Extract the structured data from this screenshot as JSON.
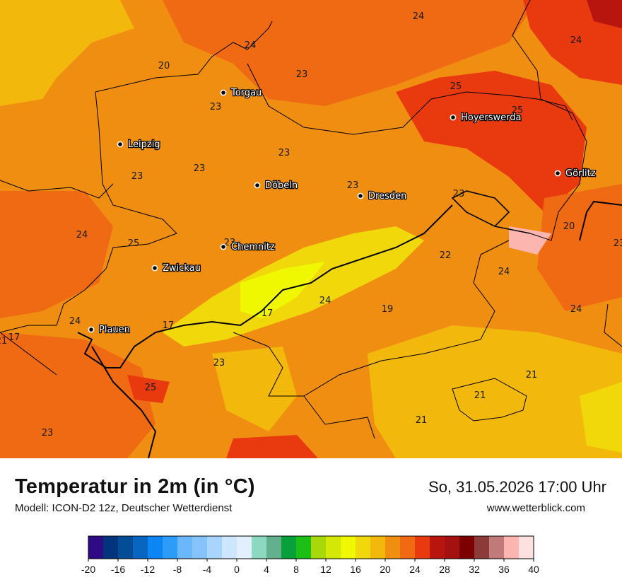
{
  "map": {
    "cities": [
      {
        "name": "Torgau"
      },
      {
        "name": "Hoyerswerda"
      },
      {
        "name": "Leipzig"
      },
      {
        "name": "Görlitz"
      },
      {
        "name": "Döbeln"
      },
      {
        "name": "Dresden"
      },
      {
        "name": "Chemnitz"
      },
      {
        "name": "Zwickau"
      },
      {
        "name": "Plauen"
      }
    ],
    "temperatures": [
      "24",
      "24",
      "24",
      "20",
      "23",
      "25",
      "25",
      "23",
      "23",
      "23",
      "23",
      "23",
      "23",
      "20",
      "24",
      "25",
      "23",
      "22",
      "24",
      "24",
      "17",
      "17",
      "24",
      "19",
      "24",
      "23",
      "21",
      "23",
      "21",
      "25",
      "21",
      "21",
      "23",
      "17"
    ]
  },
  "footer": {
    "title": "Temperatur in 2m (in °C)",
    "model": "Modell: ICON-D2 12z, Deutscher Wetterdienst",
    "datetime": "So, 31.05.2026 17:00 Uhr",
    "website": "www.wetterblick.com"
  },
  "legend": {
    "tick_labels": [
      "-20",
      "-16",
      "-12",
      "-8",
      "-4",
      "0",
      "4",
      "8",
      "12",
      "16",
      "20",
      "24",
      "28",
      "32",
      "36",
      "40"
    ],
    "colors": [
      "#2e0a84",
      "#02337d",
      "#034c96",
      "#0866c0",
      "#0b86f4",
      "#2c9cf9",
      "#6ab8fb",
      "#86c3fb",
      "#a9d5fc",
      "#cde6fd",
      "#e2effd",
      "#8cd9c0",
      "#62b08e",
      "#07a03a",
      "#1ebf15",
      "#a6d80a",
      "#d3e806",
      "#f0f800",
      "#f1d80a",
      "#f2b80c",
      "#f08e12",
      "#ef6a12",
      "#e83a0e",
      "#b8150e",
      "#a51010",
      "#7c0000",
      "#8c3a3a",
      "#c07a7a",
      "#fdb5b0",
      "#fde0e0"
    ]
  }
}
